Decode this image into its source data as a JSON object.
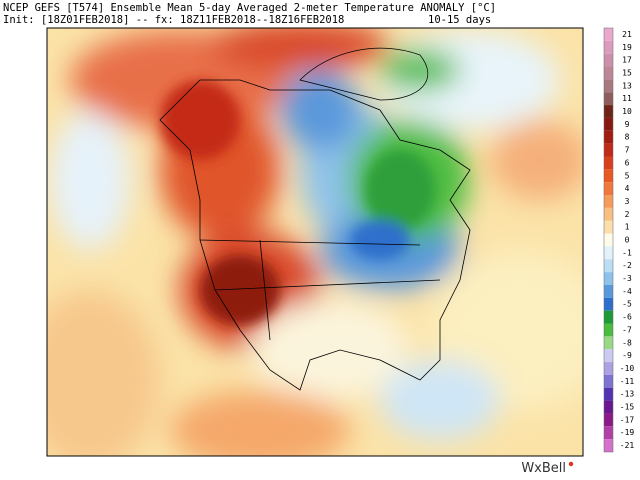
{
  "header": {
    "line1": "NCEP GEFS [T574] Ensemble Mean 5-day Averaged 2-meter Temperature ANOMALY [°C]",
    "init": "Init: [18Z01FEB2018] -- fx: 18Z11FEB2018--18Z16FEB2018",
    "range": "10-15 days"
  },
  "colorbar": {
    "labels": [
      21,
      19,
      17,
      15,
      13,
      11,
      10,
      9,
      8,
      7,
      6,
      5,
      4,
      3,
      2,
      1,
      0,
      -1,
      -2,
      -3,
      -4,
      -5,
      -6,
      -7,
      -8,
      -9,
      -10,
      -11,
      -13,
      -15,
      -17,
      -19,
      -21
    ],
    "colors": [
      "#eaa8cc",
      "#dc9cbc",
      "#cc90ac",
      "#bc8898",
      "#a87a80",
      "#8f5e5c",
      "#6e2418",
      "#861a10",
      "#a31c12",
      "#c02a18",
      "#d8401e",
      "#e85a24",
      "#f0783c",
      "#f59c5c",
      "#f8be82",
      "#fbdeaa",
      "#fffbe8",
      "#e2f2fa",
      "#bcdef2",
      "#8ec2ea",
      "#5a98dc",
      "#2f6fcc",
      "#1f9a38",
      "#4cbc40",
      "#9ad888",
      "#cccaf0",
      "#aaa2e2",
      "#7e72d2",
      "#5234b2",
      "#6a1890",
      "#8a1a88",
      "#b040a8",
      "#d472cc"
    ]
  },
  "logo": "WxBell"
}
